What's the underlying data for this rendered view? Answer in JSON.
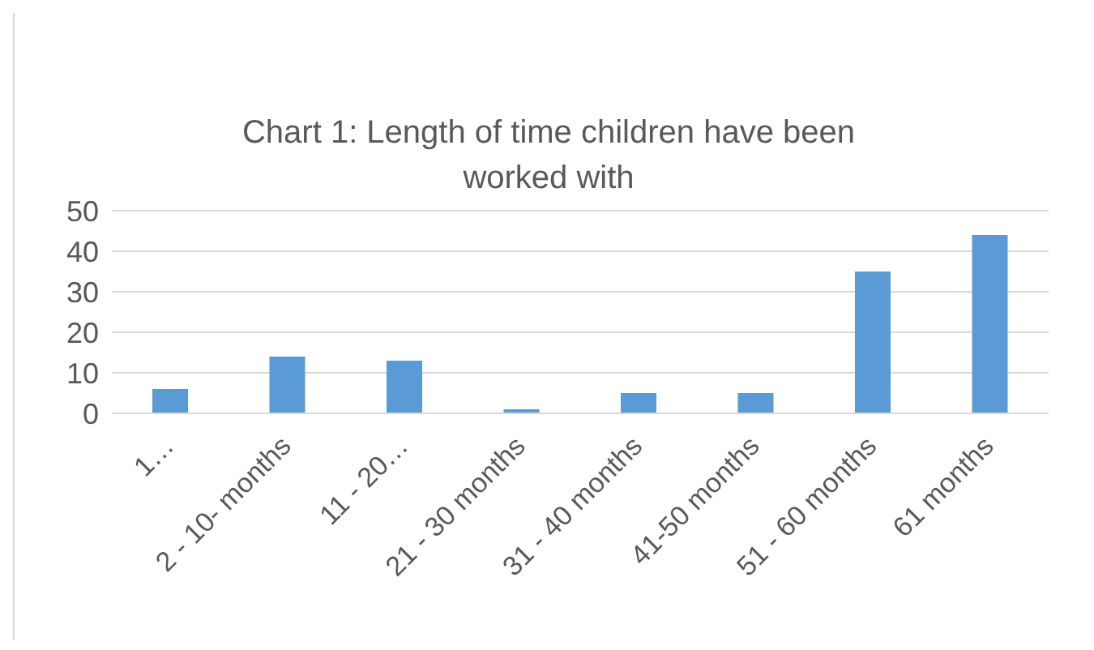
{
  "chart_data": {
    "type": "bar",
    "title": "Chart 1: Length of time children have been worked with",
    "categories": [
      "1…",
      "2 - 10- months",
      "11 - 20…",
      "21 - 30 months",
      "31 - 40 months",
      "41-50 months",
      "51 - 60 months",
      "61 months"
    ],
    "values": [
      6,
      14,
      13,
      1,
      5,
      5,
      35,
      44
    ],
    "color": "#5b9bd5",
    "ylim": [
      0,
      50
    ],
    "yticks": [
      0,
      10,
      20,
      30,
      40,
      50
    ],
    "grid": "y",
    "legend": false
  }
}
